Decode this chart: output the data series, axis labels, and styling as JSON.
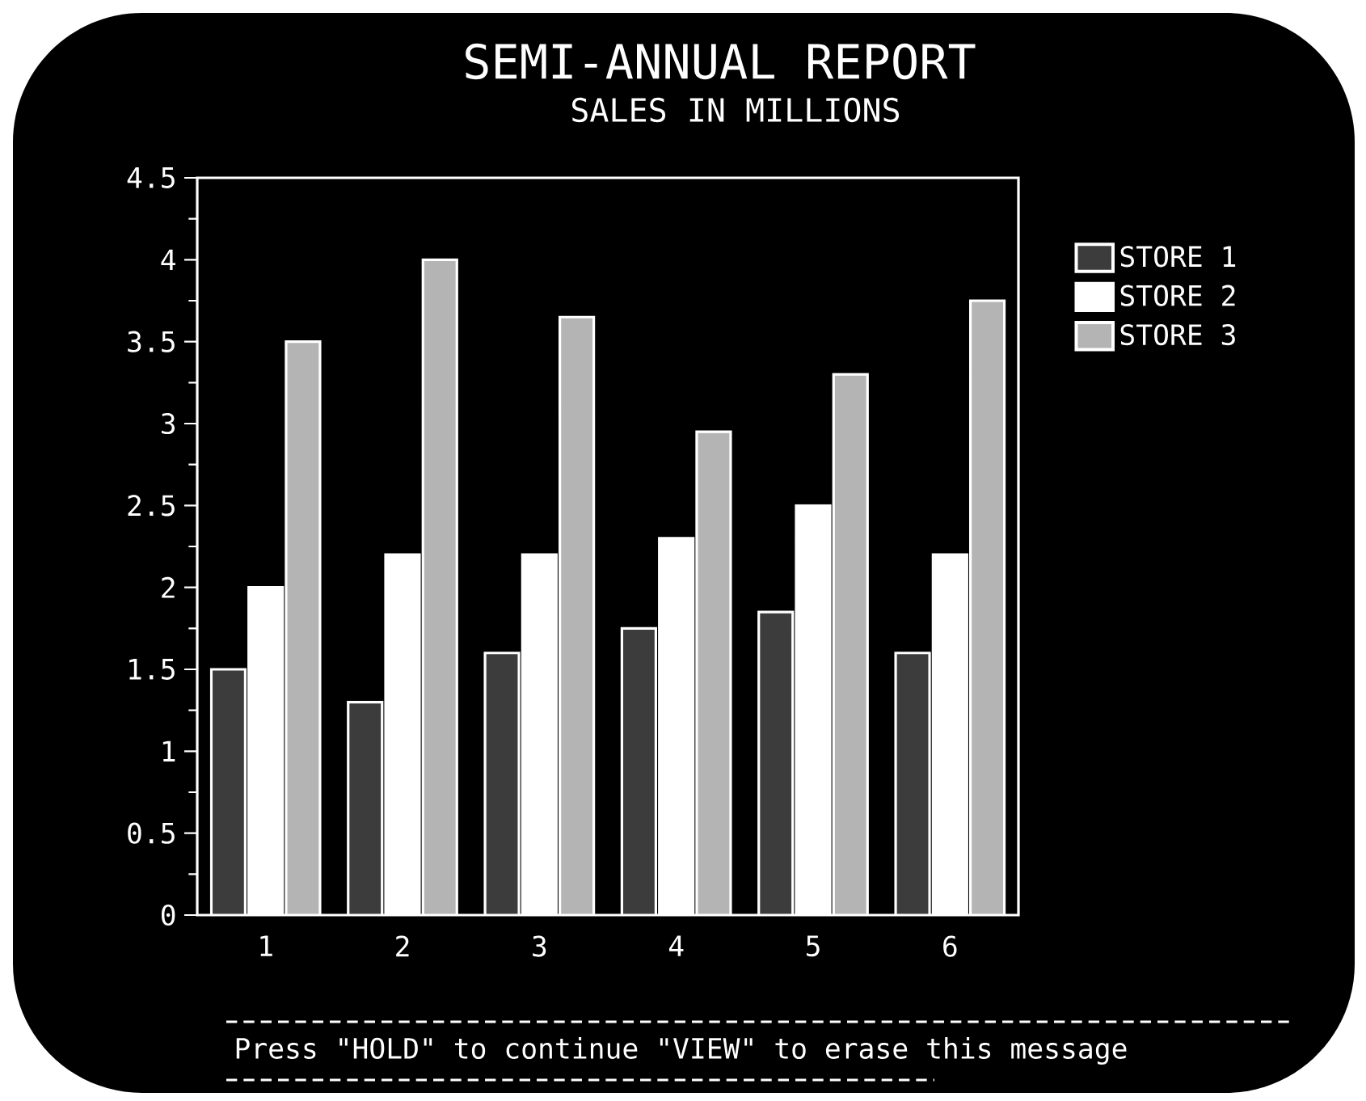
{
  "chart_data": {
    "type": "bar",
    "title": "SEMI-ANNUAL REPORT",
    "subtitle": "SALES IN MILLIONS",
    "categories": [
      "1",
      "2",
      "3",
      "4",
      "5",
      "6"
    ],
    "series": [
      {
        "name": "STORE 1",
        "color": "#3c3c3c",
        "values": [
          1.5,
          1.3,
          1.6,
          1.75,
          1.85,
          1.6
        ]
      },
      {
        "name": "STORE 2",
        "color": "#ffffff",
        "values": [
          2.0,
          2.2,
          2.2,
          2.3,
          2.5,
          2.2
        ]
      },
      {
        "name": "STORE 3",
        "color": "#b4b4b4",
        "values": [
          3.5,
          4.0,
          3.65,
          2.95,
          3.3,
          3.75
        ]
      }
    ],
    "ylim": [
      0,
      4.5
    ],
    "yticks": [
      0,
      0.5,
      1,
      1.5,
      2,
      2.5,
      3,
      3.5,
      4,
      4.5
    ],
    "grid": false,
    "legend": "top right",
    "annotations": [
      "Press \"HOLD\" to continue \"VIEW\" to erase this message"
    ]
  }
}
